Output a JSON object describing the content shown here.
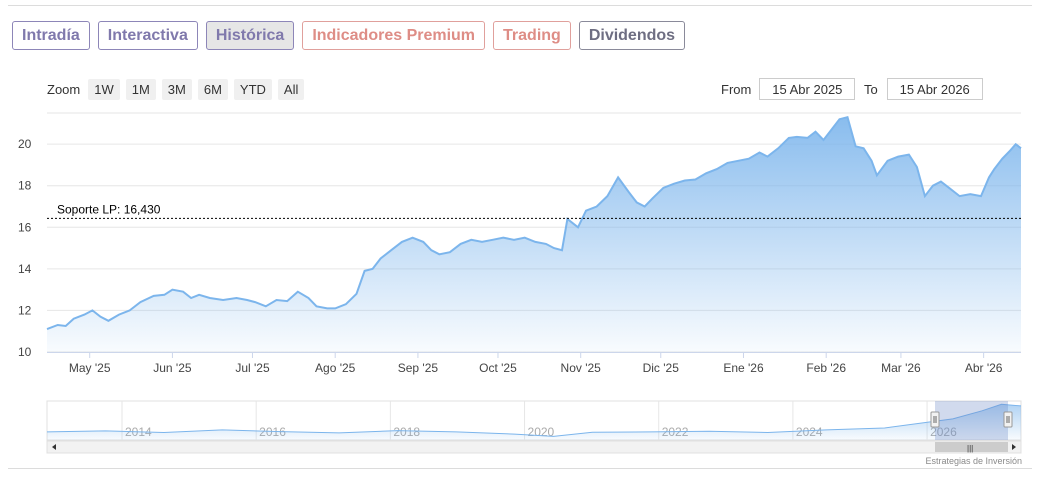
{
  "tabs": [
    {
      "label": "Intradía",
      "style": "purple"
    },
    {
      "label": "Interactiva",
      "style": "purple"
    },
    {
      "label": "Histórica",
      "style": "active"
    },
    {
      "label": "Indicadores Premium",
      "style": "red"
    },
    {
      "label": "Trading",
      "style": "red"
    },
    {
      "label": "Dividendos",
      "style": "gray"
    }
  ],
  "zoom": {
    "label": "Zoom",
    "buttons": [
      "1W",
      "1M",
      "3M",
      "6M",
      "YTD",
      "All"
    ]
  },
  "range": {
    "from_label": "From",
    "from_value": "15 Abr 2025",
    "to_label": "To",
    "to_value": "15 Abr 2026"
  },
  "credit": "Estrategias de Inversión",
  "chart_data": {
    "type": "area",
    "ylim": [
      10,
      21.5
    ],
    "yticks": [
      10,
      12,
      14,
      16,
      18,
      20
    ],
    "xrange": [
      "2025-04-15",
      "2026-04-15"
    ],
    "xticks": [
      {
        "date": "2025-05-01",
        "label": "May '25"
      },
      {
        "date": "2025-06-01",
        "label": "Jun '25"
      },
      {
        "date": "2025-07-01",
        "label": "Jul '25"
      },
      {
        "date": "2025-08-01",
        "label": "Ago '25"
      },
      {
        "date": "2025-09-01",
        "label": "Sep '25"
      },
      {
        "date": "2025-10-01",
        "label": "Oct '25"
      },
      {
        "date": "2025-11-01",
        "label": "Nov '25"
      },
      {
        "date": "2025-12-01",
        "label": "Dic '25"
      },
      {
        "date": "2026-01-01",
        "label": "Ene '26"
      },
      {
        "date": "2026-02-01",
        "label": "Feb '26"
      },
      {
        "date": "2026-03-01",
        "label": "Mar '26"
      },
      {
        "date": "2026-04-01",
        "label": "Abr '26"
      }
    ],
    "plotline": {
      "value": 16.43,
      "label": "Soporte LP: 16,430"
    },
    "series": [
      {
        "color": "#7cb5ec",
        "points": [
          [
            "2025-04-15",
            11.1
          ],
          [
            "2025-04-19",
            11.3
          ],
          [
            "2025-04-22",
            11.25
          ],
          [
            "2025-04-25",
            11.6
          ],
          [
            "2025-04-29",
            11.8
          ],
          [
            "2025-05-02",
            12.0
          ],
          [
            "2025-05-05",
            11.7
          ],
          [
            "2025-05-08",
            11.5
          ],
          [
            "2025-05-12",
            11.8
          ],
          [
            "2025-05-16",
            12.0
          ],
          [
            "2025-05-20",
            12.4
          ],
          [
            "2025-05-25",
            12.7
          ],
          [
            "2025-05-29",
            12.75
          ],
          [
            "2025-06-01",
            13.0
          ],
          [
            "2025-06-05",
            12.9
          ],
          [
            "2025-06-08",
            12.6
          ],
          [
            "2025-06-11",
            12.75
          ],
          [
            "2025-06-15",
            12.6
          ],
          [
            "2025-06-20",
            12.5
          ],
          [
            "2025-06-25",
            12.6
          ],
          [
            "2025-06-29",
            12.5
          ],
          [
            "2025-07-02",
            12.4
          ],
          [
            "2025-07-06",
            12.2
          ],
          [
            "2025-07-10",
            12.5
          ],
          [
            "2025-07-14",
            12.45
          ],
          [
            "2025-07-18",
            12.9
          ],
          [
            "2025-07-22",
            12.6
          ],
          [
            "2025-07-25",
            12.2
          ],
          [
            "2025-07-29",
            12.1
          ],
          [
            "2025-08-01",
            12.1
          ],
          [
            "2025-08-05",
            12.3
          ],
          [
            "2025-08-09",
            12.8
          ],
          [
            "2025-08-12",
            13.9
          ],
          [
            "2025-08-15",
            14.0
          ],
          [
            "2025-08-18",
            14.5
          ],
          [
            "2025-08-22",
            14.9
          ],
          [
            "2025-08-26",
            15.3
          ],
          [
            "2025-08-30",
            15.5
          ],
          [
            "2025-09-03",
            15.3
          ],
          [
            "2025-09-06",
            14.9
          ],
          [
            "2025-09-09",
            14.7
          ],
          [
            "2025-09-13",
            14.8
          ],
          [
            "2025-09-17",
            15.2
          ],
          [
            "2025-09-21",
            15.4
          ],
          [
            "2025-09-25",
            15.3
          ],
          [
            "2025-09-29",
            15.4
          ],
          [
            "2025-10-03",
            15.5
          ],
          [
            "2025-10-07",
            15.4
          ],
          [
            "2025-10-11",
            15.5
          ],
          [
            "2025-10-15",
            15.3
          ],
          [
            "2025-10-19",
            15.2
          ],
          [
            "2025-10-22",
            15.0
          ],
          [
            "2025-10-25",
            14.9
          ],
          [
            "2025-10-27",
            16.4
          ],
          [
            "2025-10-31",
            16.0
          ],
          [
            "2025-11-03",
            16.8
          ],
          [
            "2025-11-07",
            17.0
          ],
          [
            "2025-11-11",
            17.5
          ],
          [
            "2025-11-15",
            18.4
          ],
          [
            "2025-11-19",
            17.7
          ],
          [
            "2025-11-22",
            17.2
          ],
          [
            "2025-11-25",
            17.0
          ],
          [
            "2025-11-28",
            17.4
          ],
          [
            "2025-12-02",
            17.9
          ],
          [
            "2025-12-06",
            18.1
          ],
          [
            "2025-12-10",
            18.25
          ],
          [
            "2025-12-14",
            18.3
          ],
          [
            "2025-12-18",
            18.6
          ],
          [
            "2025-12-22",
            18.8
          ],
          [
            "2025-12-26",
            19.1
          ],
          [
            "2025-12-30",
            19.2
          ],
          [
            "2026-01-03",
            19.3
          ],
          [
            "2026-01-07",
            19.6
          ],
          [
            "2026-01-10",
            19.4
          ],
          [
            "2026-01-14",
            19.8
          ],
          [
            "2026-01-18",
            20.3
          ],
          [
            "2026-01-21",
            20.35
          ],
          [
            "2026-01-25",
            20.3
          ],
          [
            "2026-01-28",
            20.6
          ],
          [
            "2026-01-31",
            20.2
          ],
          [
            "2026-02-03",
            20.7
          ],
          [
            "2026-02-06",
            21.2
          ],
          [
            "2026-02-09",
            21.3
          ],
          [
            "2026-02-12",
            19.9
          ],
          [
            "2026-02-15",
            19.8
          ],
          [
            "2026-02-18",
            19.2
          ],
          [
            "2026-02-20",
            18.5
          ],
          [
            "2026-02-24",
            19.2
          ],
          [
            "2026-02-28",
            19.4
          ],
          [
            "2026-03-04",
            19.5
          ],
          [
            "2026-03-07",
            18.9
          ],
          [
            "2026-03-10",
            17.5
          ],
          [
            "2026-03-13",
            18.0
          ],
          [
            "2026-03-16",
            18.2
          ],
          [
            "2026-03-19",
            17.9
          ],
          [
            "2026-03-23",
            17.5
          ],
          [
            "2026-03-27",
            17.6
          ],
          [
            "2026-03-31",
            17.5
          ],
          [
            "2026-04-03",
            18.4
          ],
          [
            "2026-04-05",
            18.8
          ],
          [
            "2026-04-08",
            19.3
          ],
          [
            "2026-04-11",
            19.7
          ],
          [
            "2026-04-13",
            20.0
          ],
          [
            "2026-04-15",
            19.8
          ]
        ]
      }
    ],
    "navigator": {
      "labels": [
        "2014",
        "2016",
        "2018",
        "2020",
        "2022",
        "2024",
        "2026"
      ],
      "points": [
        [
          0,
          12.0
        ],
        [
          0.06,
          12.3
        ],
        [
          0.12,
          11.8
        ],
        [
          0.18,
          12.6
        ],
        [
          0.24,
          12.1
        ],
        [
          0.3,
          11.7
        ],
        [
          0.36,
          12.4
        ],
        [
          0.42,
          12.0
        ],
        [
          0.48,
          11.3
        ],
        [
          0.52,
          10.6
        ],
        [
          0.56,
          11.9
        ],
        [
          0.62,
          12.0
        ],
        [
          0.68,
          12.2
        ],
        [
          0.74,
          11.8
        ],
        [
          0.8,
          12.6
        ],
        [
          0.86,
          13.2
        ],
        [
          0.9,
          14.8
        ],
        [
          0.93,
          16.0
        ],
        [
          0.96,
          18.5
        ],
        [
          0.98,
          20.5
        ],
        [
          1,
          20.0
        ]
      ]
    }
  }
}
